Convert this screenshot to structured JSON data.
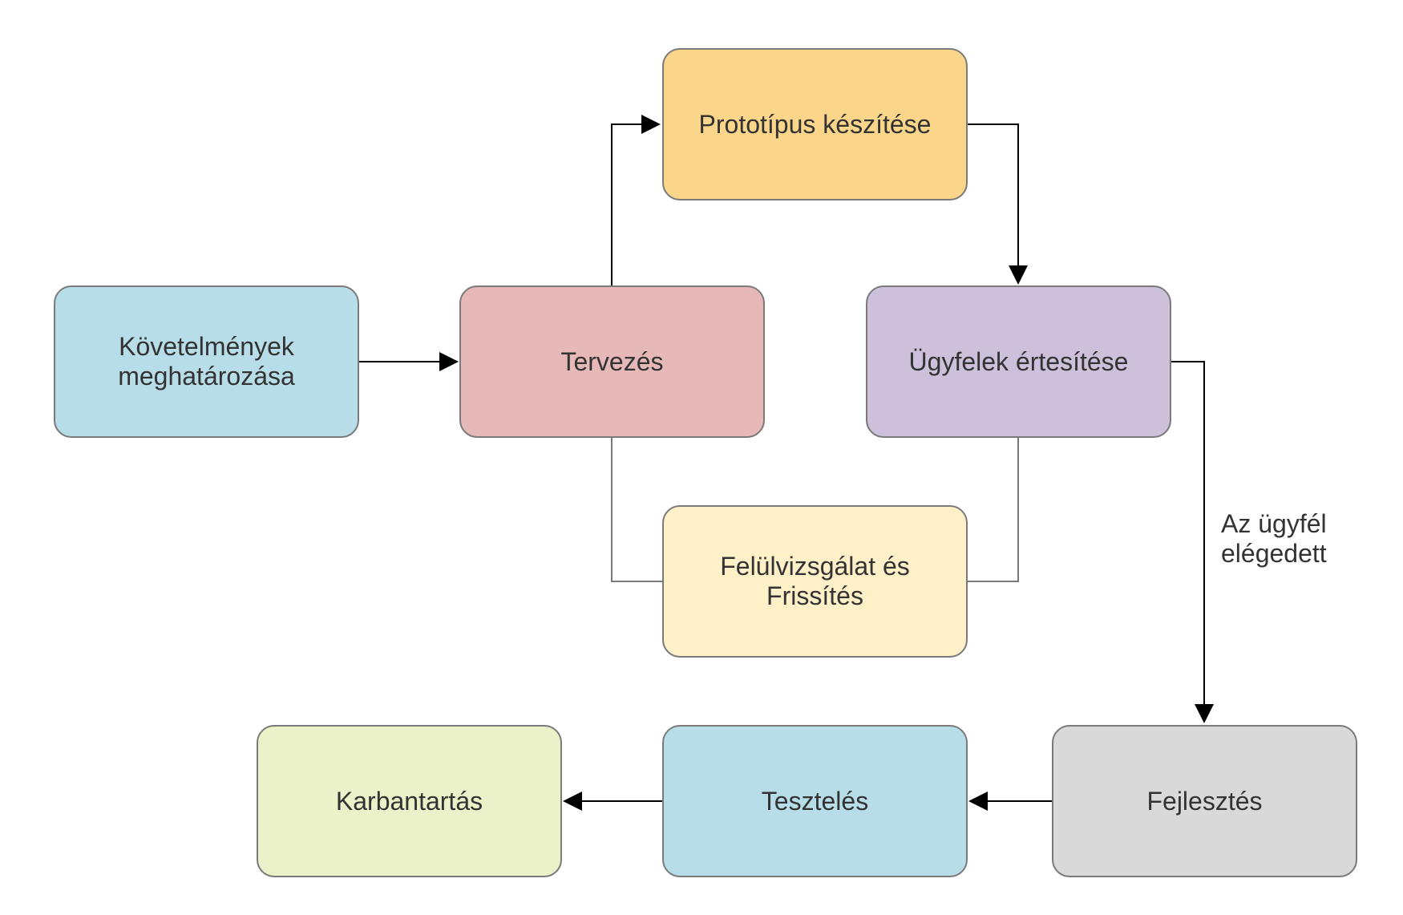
{
  "nodes": {
    "requirements": {
      "label": "Követelmények\nmeghatározása",
      "color": "#b7dde8"
    },
    "design": {
      "label": "Tervezés",
      "color": "#e6b8b7"
    },
    "prototype": {
      "label": "Prototípus készítése",
      "color": "#fbd589"
    },
    "notify": {
      "label": "Ügyfelek értesítése",
      "color": "#ccc0da"
    },
    "review": {
      "label": "Felülvizsgálat és\nFrissítés",
      "color": "#fff0c8"
    },
    "development": {
      "label": "Fejlesztés",
      "color": "#d9d9d9"
    },
    "testing": {
      "label": "Tesztelés",
      "color": "#b7dde8"
    },
    "maintenance": {
      "label": "Karbantartás",
      "color": "#ebf1c8"
    }
  },
  "edge_labels": {
    "satisfied": "Az ügyfél\nelégedett"
  },
  "colors": {
    "line": "#000000",
    "border": "#7a7a7a",
    "text": "#333333"
  }
}
